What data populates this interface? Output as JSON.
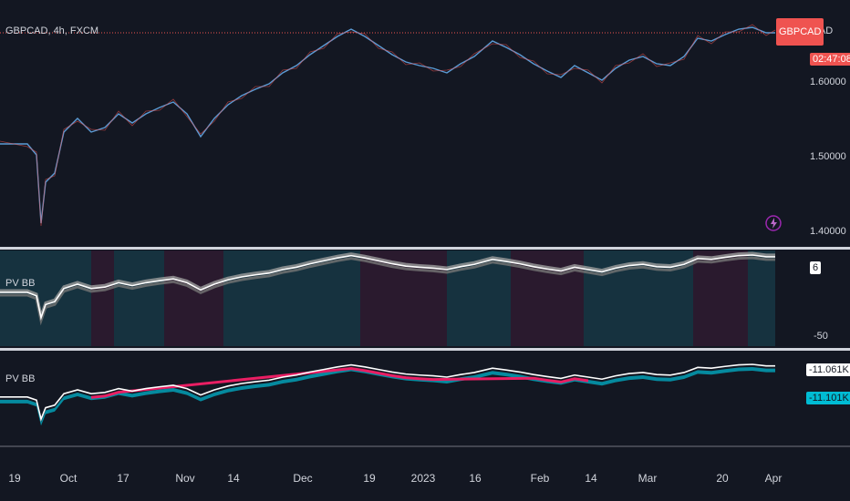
{
  "symbol_legend": "GBPCAD, 4h, FXCM",
  "currency_label": "CAD",
  "symbol_tag": "GBPCAD",
  "countdown_tag": "02:47:08",
  "price_axis": [
    "1.60000",
    "1.50000",
    "1.40000"
  ],
  "indicator1": {
    "name": "PV BB",
    "top_value": "6",
    "bottom_value": "-50"
  },
  "indicator2": {
    "name": "PV BB",
    "value_1": "-11.061K",
    "value_2": "-11.101K"
  },
  "time_axis": [
    "19",
    "Oct",
    "17",
    "Nov",
    "14",
    "Dec",
    "19",
    "2023",
    "16",
    "Feb",
    "14",
    "Mar",
    "20",
    "Apr"
  ],
  "colors": {
    "up": "#26a69a",
    "down": "#ef5350",
    "blue_band": "#00bcd4",
    "pink_band": "#e91e63",
    "bg": "#131722"
  },
  "icons": {
    "replay": "lightning-bolt-icon"
  }
}
